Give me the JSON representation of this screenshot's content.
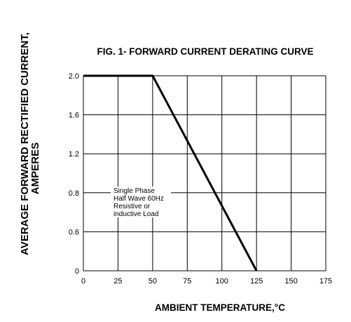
{
  "chart_data": {
    "type": "line",
    "title": "FIG. 1- FORWARD CURRENT DERATING CURVE",
    "xlabel": "AMBIENT TEMPERATURE,°C",
    "ylabel_line1": "AVERAGE FORWARD RECTIFIED CURRENT,",
    "ylabel_line2": "AMPERES",
    "x_ticks": [
      "0",
      "25",
      "50",
      "75",
      "100",
      "125",
      "150",
      "175"
    ],
    "y_ticks": [
      "0",
      "0.6",
      "0.8",
      "1.2",
      "1.6",
      "2.0"
    ],
    "xlim": [
      0,
      175
    ],
    "grid": true,
    "series": [
      {
        "x": [
          0,
          50,
          125
        ],
        "y": [
          2.0,
          2.0,
          0
        ]
      }
    ],
    "annotation": {
      "lines": [
        "Single Phase",
        "Half Wave 60Hz",
        "Resistive or",
        "inductive Load"
      ]
    }
  }
}
